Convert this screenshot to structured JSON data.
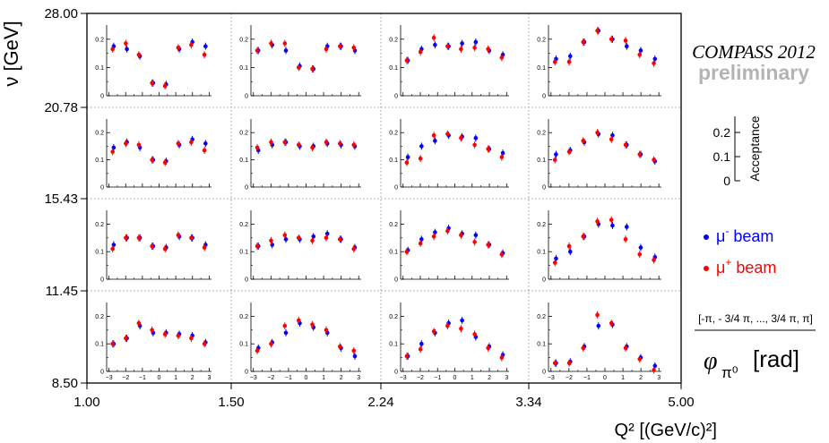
{
  "header": {
    "experiment": "COMPASS 2012",
    "status": "preliminary"
  },
  "legend": {
    "items": [
      {
        "symbol": "•",
        "particle": "μ",
        "charge": "-",
        "label": " beam",
        "color": "#0000ff"
      },
      {
        "symbol": "•",
        "particle": "μ",
        "charge": "+",
        "label": " beam",
        "color": "#ff0000"
      }
    ]
  },
  "acceptance_key": {
    "label": "Acceptance",
    "ticks": [
      "0.2",
      "0.1",
      "0"
    ]
  },
  "phi_key": {
    "range_label": "[-π, - 3/4 π, ..., 3/4 π, π]",
    "axis_symbol": "φ",
    "axis_subscript": "π⁰",
    "axis_unit": "[rad]"
  },
  "axes": {
    "ylabel": "ν [GeV]",
    "xlabel": "Q² [(GeV/c)²]",
    "nu_bins": [
      "28.00",
      "20.78",
      "15.43",
      "11.45",
      "8.50"
    ],
    "q2_bins": [
      "1.00",
      "1.50",
      "2.24",
      "3.34",
      "5.00"
    ],
    "inner_y_ticks": [
      "0.2",
      "0.1",
      "0"
    ],
    "inner_x_ticks": [
      "−3",
      "−2",
      "−1",
      "0",
      "1",
      "2",
      "3"
    ]
  },
  "chart_data": {
    "type": "scatter",
    "ylim": [
      0,
      0.25
    ],
    "xlim": [
      -3.14,
      3.14
    ],
    "phi_bins": [
      -2.75,
      -1.96,
      -1.18,
      -0.39,
      0.39,
      1.18,
      1.96,
      2.75
    ],
    "grid": false,
    "panels": [
      {
        "nu_bin": "20.78-28.00",
        "q2_bin": "1.00-1.50",
        "mu_minus": [
          0.175,
          0.165,
          0.14,
          0.045,
          0.04,
          0.165,
          0.19,
          0.175
        ],
        "mu_plus": [
          0.165,
          0.185,
          0.145,
          0.045,
          0.035,
          0.17,
          0.18,
          0.145
        ]
      },
      {
        "nu_bin": "20.78-28.00",
        "q2_bin": "1.50-2.24",
        "mu_minus": [
          0.16,
          0.18,
          0.16,
          0.105,
          0.095,
          0.175,
          0.175,
          0.16
        ],
        "mu_plus": [
          0.16,
          0.185,
          0.185,
          0.1,
          0.095,
          0.165,
          0.175,
          0.17
        ]
      },
      {
        "nu_bin": "20.78-28.00",
        "q2_bin": "2.24-3.34",
        "mu_minus": [
          0.125,
          0.165,
          0.18,
          0.175,
          0.185,
          0.19,
          0.16,
          0.145
        ],
        "mu_plus": [
          0.125,
          0.155,
          0.205,
          0.175,
          0.165,
          0.17,
          0.165,
          0.135
        ]
      },
      {
        "nu_bin": "20.78-28.00",
        "q2_bin": "3.34-5.00",
        "mu_minus": [
          0.13,
          0.14,
          0.19,
          0.23,
          0.2,
          0.175,
          0.16,
          0.13
        ],
        "mu_plus": [
          0.12,
          0.12,
          0.19,
          0.23,
          0.2,
          0.195,
          0.145,
          0.115
        ]
      },
      {
        "nu_bin": "15.43-20.78",
        "q2_bin": "1.00-1.50",
        "mu_minus": [
          0.145,
          0.165,
          0.145,
          0.1,
          0.095,
          0.155,
          0.175,
          0.16
        ],
        "mu_plus": [
          0.13,
          0.16,
          0.155,
          0.1,
          0.09,
          0.16,
          0.165,
          0.135
        ]
      },
      {
        "nu_bin": "15.43-20.78",
        "q2_bin": "1.50-2.24",
        "mu_minus": [
          0.135,
          0.155,
          0.165,
          0.15,
          0.15,
          0.16,
          0.155,
          0.15
        ],
        "mu_plus": [
          0.145,
          0.165,
          0.165,
          0.155,
          0.145,
          0.165,
          0.16,
          0.155
        ]
      },
      {
        "nu_bin": "15.43-20.78",
        "q2_bin": "2.24-3.34",
        "mu_minus": [
          0.11,
          0.15,
          0.17,
          0.19,
          0.185,
          0.18,
          0.14,
          0.125
        ],
        "mu_plus": [
          0.09,
          0.105,
          0.19,
          0.195,
          0.18,
          0.155,
          0.14,
          0.11
        ]
      },
      {
        "nu_bin": "15.43-20.78",
        "q2_bin": "3.34-5.00",
        "mu_minus": [
          0.12,
          0.135,
          0.165,
          0.195,
          0.19,
          0.155,
          0.12,
          0.095
        ],
        "mu_plus": [
          0.1,
          0.13,
          0.17,
          0.2,
          0.175,
          0.155,
          0.12,
          0.1
        ]
      },
      {
        "nu_bin": "11.45-15.43",
        "q2_bin": "1.00-1.50",
        "mu_minus": [
          0.125,
          0.15,
          0.15,
          0.12,
          0.115,
          0.155,
          0.15,
          0.125
        ],
        "mu_plus": [
          0.11,
          0.15,
          0.15,
          0.12,
          0.11,
          0.16,
          0.15,
          0.115
        ]
      },
      {
        "nu_bin": "11.45-15.43",
        "q2_bin": "1.50-2.24",
        "mu_minus": [
          0.12,
          0.125,
          0.145,
          0.145,
          0.155,
          0.165,
          0.145,
          0.115
        ],
        "mu_plus": [
          0.12,
          0.14,
          0.16,
          0.15,
          0.14,
          0.15,
          0.145,
          0.11
        ]
      },
      {
        "nu_bin": "11.45-15.43",
        "q2_bin": "2.24-3.34",
        "mu_minus": [
          0.105,
          0.145,
          0.17,
          0.185,
          0.165,
          0.16,
          0.125,
          0.095
        ],
        "mu_plus": [
          0.1,
          0.13,
          0.155,
          0.175,
          0.16,
          0.135,
          0.125,
          0.09
        ]
      },
      {
        "nu_bin": "11.45-15.43",
        "q2_bin": "3.34-5.00",
        "mu_minus": [
          0.075,
          0.1,
          0.155,
          0.2,
          0.195,
          0.19,
          0.115,
          0.08
        ],
        "mu_plus": [
          0.06,
          0.12,
          0.155,
          0.21,
          0.215,
          0.145,
          0.09,
          0.07
        ]
      },
      {
        "nu_bin": "8.50-11.45",
        "q2_bin": "1.00-1.50",
        "mu_minus": [
          0.1,
          0.12,
          0.165,
          0.14,
          0.14,
          0.135,
          0.13,
          0.105
        ],
        "mu_plus": [
          0.1,
          0.12,
          0.175,
          0.15,
          0.135,
          0.13,
          0.12,
          0.1
        ]
      },
      {
        "nu_bin": "8.50-11.45",
        "q2_bin": "1.50-2.24",
        "mu_minus": [
          0.085,
          0.105,
          0.14,
          0.175,
          0.16,
          0.14,
          0.085,
          0.055
        ],
        "mu_plus": [
          0.075,
          0.1,
          0.165,
          0.185,
          0.17,
          0.15,
          0.09,
          0.075
        ]
      },
      {
        "nu_bin": "8.50-11.45",
        "q2_bin": "2.24-3.34",
        "mu_minus": [
          0.055,
          0.1,
          0.14,
          0.175,
          0.185,
          0.125,
          0.09,
          0.06
        ],
        "mu_plus": [
          0.055,
          0.08,
          0.145,
          0.165,
          0.155,
          0.135,
          0.085,
          0.05
        ]
      },
      {
        "nu_bin": "8.50-11.45",
        "q2_bin": "3.34-5.00",
        "mu_minus": [
          0.03,
          0.035,
          0.09,
          0.165,
          0.17,
          0.09,
          0.05,
          0.02
        ],
        "mu_plus": [
          0.03,
          0.03,
          0.085,
          0.205,
          0.175,
          0.085,
          0.045,
          0.005
        ]
      }
    ]
  }
}
